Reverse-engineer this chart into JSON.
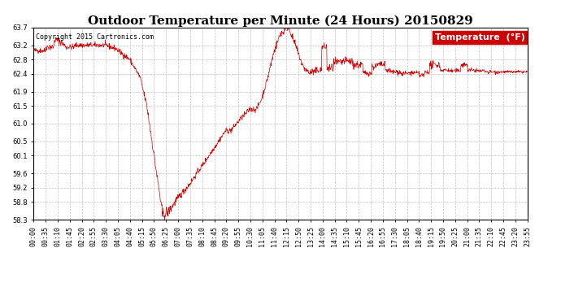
{
  "title": "Outdoor Temperature per Minute (24 Hours) 20150829",
  "copyright": "Copyright 2015 Cartronics.com",
  "legend_label": "Temperature  (°F)",
  "line_color": "#cc0000",
  "background_color": "#ffffff",
  "plot_bg_color": "#ffffff",
  "grid_color": "#b0b0b0",
  "ylim": [
    58.3,
    63.7
  ],
  "yticks": [
    58.3,
    58.8,
    59.2,
    59.6,
    60.1,
    60.5,
    61.0,
    61.5,
    61.9,
    62.4,
    62.8,
    63.2,
    63.7
  ],
  "xtick_labels": [
    "00:00",
    "00:35",
    "01:10",
    "01:45",
    "02:20",
    "02:55",
    "03:30",
    "04:05",
    "04:40",
    "05:15",
    "05:50",
    "06:25",
    "07:00",
    "07:35",
    "08:10",
    "08:45",
    "09:20",
    "09:55",
    "10:30",
    "11:05",
    "11:40",
    "12:15",
    "12:50",
    "13:25",
    "14:00",
    "14:35",
    "15:10",
    "15:45",
    "16:20",
    "16:55",
    "17:30",
    "18:05",
    "18:40",
    "19:15",
    "19:50",
    "20:25",
    "21:00",
    "21:35",
    "22:10",
    "22:45",
    "23:20",
    "23:55"
  ],
  "title_fontsize": 11,
  "copyright_fontsize": 6,
  "tick_fontsize": 6,
  "legend_fontsize": 8
}
